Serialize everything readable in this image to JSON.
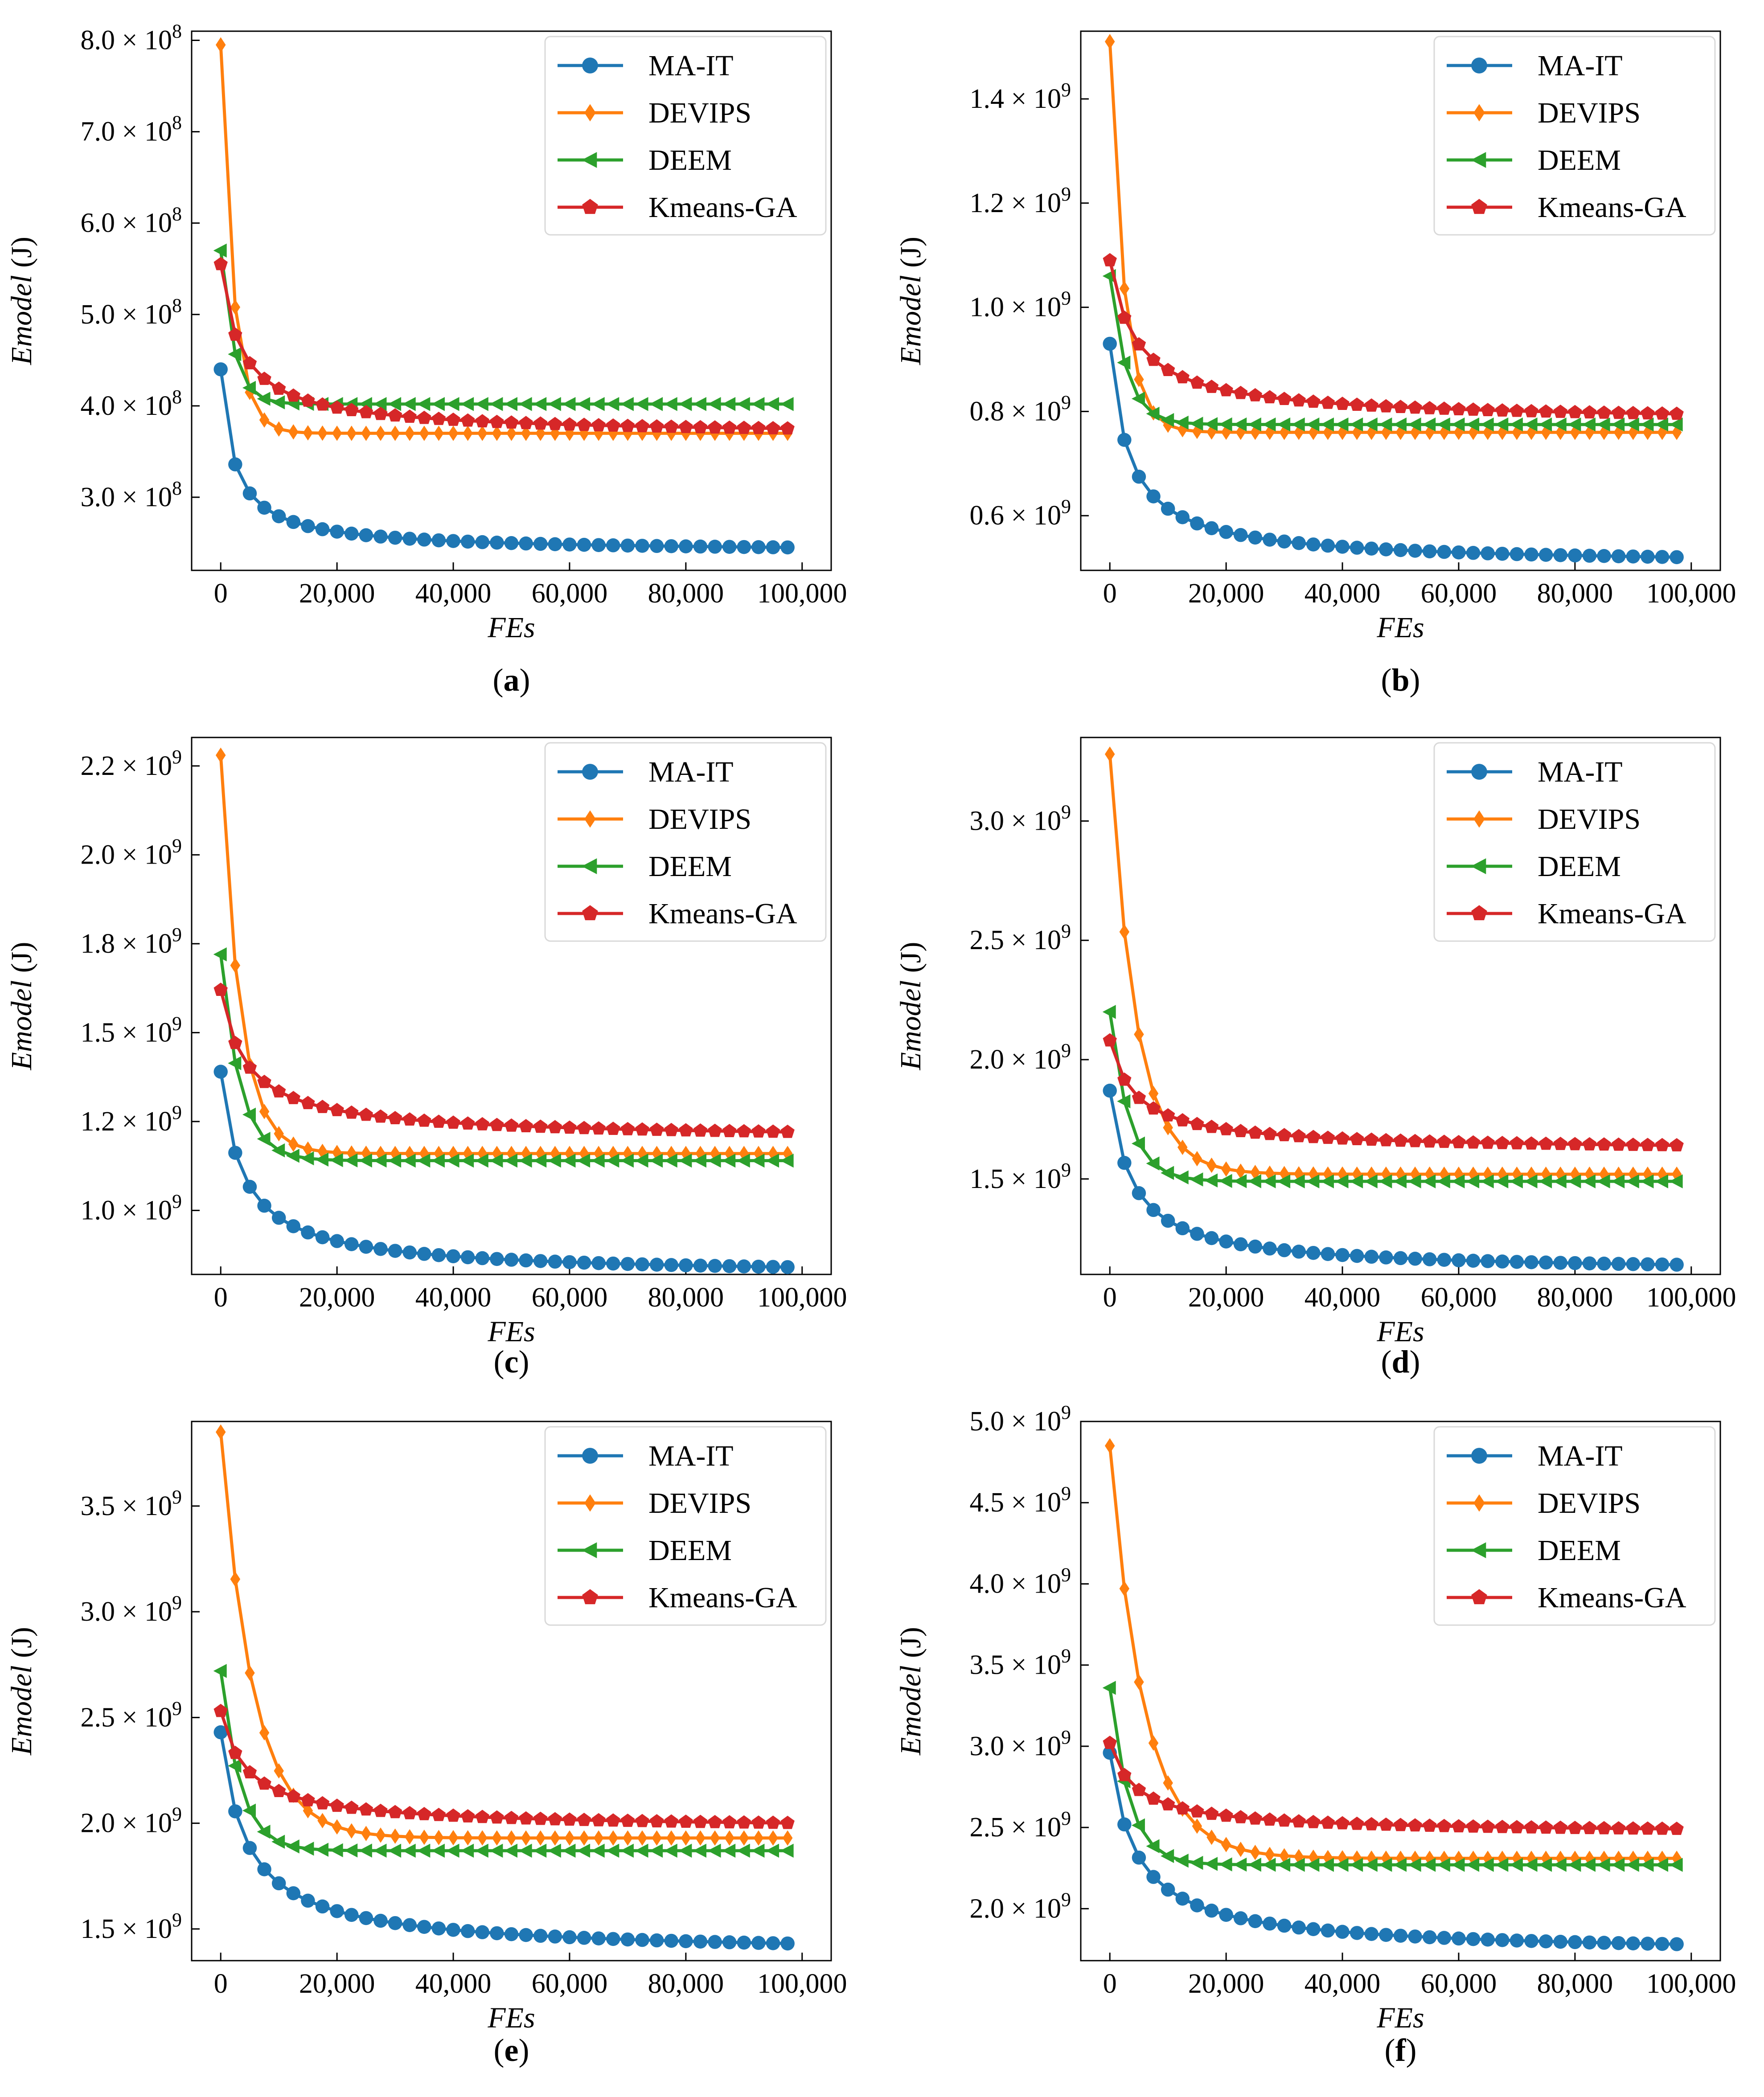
{
  "colors": {
    "MA-IT": "#1f77b4",
    "DEVIPS": "#ff7f0e",
    "DEEM": "#2ca02c",
    "Kmeans-GA": "#d62728"
  },
  "markers": {
    "MA-IT": "circle",
    "DEVIPS": "diamond",
    "DEEM": "triangle-left",
    "Kmeans-GA": "pentagon"
  },
  "chart_data": [
    {
      "panel": "(a)",
      "caption_letter": "a",
      "type": "line",
      "xlabel": "FEs",
      "ylabel": "Emodel (J)",
      "xlim": [
        -5000,
        105000
      ],
      "ylim": [
        220000000.0,
        810000000.0
      ],
      "xticks": [
        0,
        20000,
        40000,
        60000,
        80000,
        100000
      ],
      "xtick_labels": [
        "0",
        "20,000",
        "40,000",
        "60,000",
        "80,000",
        "100,000"
      ],
      "yticks": [
        300000000.0,
        400000000.0,
        500000000.0,
        600000000.0,
        700000000.0,
        800000000.0
      ],
      "ytick_labels": [
        {
          "mant": "3.0",
          "exp": "8"
        },
        {
          "mant": "4.0",
          "exp": "8"
        },
        {
          "mant": "5.0",
          "exp": "8"
        },
        {
          "mant": "6.0",
          "exp": "8"
        },
        {
          "mant": "7.0",
          "exp": "8"
        },
        {
          "mant": "8.0",
          "exp": "8"
        }
      ],
      "legend": [
        "MA-IT",
        "DEVIPS",
        "DEEM",
        "Kmeans-GA"
      ],
      "legend_position": "upper-right",
      "series": [
        {
          "name": "MA-IT",
          "start": 440000000.0,
          "end": 245000000.0,
          "rate": 5,
          "form": "power"
        },
        {
          "name": "DEVIPS",
          "start": 795000000.0,
          "end": 370000000.0,
          "rate": 0.00045,
          "form": "exp",
          "plateau": 370000000.0
        },
        {
          "name": "DEEM",
          "start": 570000000.0,
          "end": 402000000.0,
          "rate": 0.00045,
          "form": "exp",
          "plateau": 402000000.0
        },
        {
          "name": "Kmeans-GA",
          "start": 555000000.0,
          "end": 375000000.0,
          "rate": 3.2,
          "form": "power"
        }
      ]
    },
    {
      "panel": "(b)",
      "caption_letter": "b",
      "type": "line",
      "xlabel": "FEs",
      "ylabel": "Emodel (J)",
      "xlim": [
        -5000,
        105000
      ],
      "ylim": [
        495000000.0,
        1530000000.0
      ],
      "xticks": [
        0,
        20000,
        40000,
        60000,
        80000,
        100000
      ],
      "xtick_labels": [
        "0",
        "20,000",
        "40,000",
        "60,000",
        "80,000",
        "100,000"
      ],
      "yticks": [
        600000000.0,
        800000000.0,
        1000000000.0,
        1200000000.0,
        1400000000.0
      ],
      "ytick_labels": [
        {
          "mant": "0.6",
          "exp": "9"
        },
        {
          "mant": "0.8",
          "exp": "9"
        },
        {
          "mant": "1.0",
          "exp": "9"
        },
        {
          "mant": "1.2",
          "exp": "9"
        },
        {
          "mant": "1.4",
          "exp": "9"
        }
      ],
      "legend": [
        "MA-IT",
        "DEVIPS",
        "DEEM",
        "Kmeans-GA"
      ],
      "legend_position": "upper-right",
      "series": [
        {
          "name": "MA-IT",
          "start": 930000000.0,
          "end": 520000000.0,
          "rate": 3.5,
          "form": "power"
        },
        {
          "name": "DEVIPS",
          "start": 1510000000.0,
          "end": 760000000.0,
          "rate": 0.0004,
          "form": "exp",
          "plateau": 760000000.0
        },
        {
          "name": "DEEM",
          "start": 1060000000.0,
          "end": 775000000.0,
          "rate": 0.00035,
          "form": "exp",
          "plateau": 775000000.0
        },
        {
          "name": "Kmeans-GA",
          "start": 1090000000.0,
          "end": 795000000.0,
          "rate": 2.5,
          "form": "power"
        }
      ]
    },
    {
      "panel": "(c)",
      "caption_letter": "c",
      "type": "line",
      "xlabel": "FEs",
      "ylabel": "Emodel (J)",
      "xlim": [
        -5000,
        105000
      ],
      "ylim": [
        820000000.0,
        2330000000.0
      ],
      "xticks": [
        0,
        20000,
        40000,
        60000,
        80000,
        100000
      ],
      "xtick_labels": [
        "0",
        "20,000",
        "40,000",
        "60,000",
        "80,000",
        "100,000"
      ],
      "yticks": [
        1000000000.0,
        1250000000.0,
        1500000000.0,
        1750000000.0,
        2000000000.0,
        2250000000.0
      ],
      "ytick_labels": [
        {
          "mant": "1.0",
          "exp": "9"
        },
        {
          "mant": "1.2",
          "exp": "9"
        },
        {
          "mant": "1.5",
          "exp": "9"
        },
        {
          "mant": "1.8",
          "exp": "9"
        },
        {
          "mant": "2.0",
          "exp": "9"
        },
        {
          "mant": "2.2",
          "exp": "9"
        }
      ],
      "legend": [
        "MA-IT",
        "DEVIPS",
        "DEEM",
        "Kmeans-GA"
      ],
      "legend_position": "upper-right",
      "series": [
        {
          "name": "MA-IT",
          "start": 1390000000.0,
          "end": 840000000.0,
          "rate": 3,
          "form": "power"
        },
        {
          "name": "DEVIPS",
          "start": 2280000000.0,
          "end": 1160000000.0,
          "rate": 0.0003,
          "form": "exp",
          "plateau": 1160000000.0
        },
        {
          "name": "DEEM",
          "start": 1720000000.0,
          "end": 1140000000.0,
          "rate": 0.0003,
          "form": "exp",
          "plateau": 1140000000.0
        },
        {
          "name": "Kmeans-GA",
          "start": 1620000000.0,
          "end": 1220000000.0,
          "rate": 2.5,
          "form": "power"
        }
      ]
    },
    {
      "panel": "(d)",
      "caption_letter": "d",
      "type": "line",
      "xlabel": "FEs",
      "ylabel": "Emodel (J)",
      "xlim": [
        -5000,
        105000
      ],
      "ylim": [
        1100000000.0,
        3350000000.0
      ],
      "xticks": [
        0,
        20000,
        40000,
        60000,
        80000,
        100000
      ],
      "xtick_labels": [
        "0",
        "20,000",
        "40,000",
        "60,000",
        "80,000",
        "100,000"
      ],
      "yticks": [
        1500000000.0,
        2000000000.0,
        2500000000.0,
        3000000000.0
      ],
      "ytick_labels": [
        {
          "mant": "1.5",
          "exp": "9"
        },
        {
          "mant": "2.0",
          "exp": "9"
        },
        {
          "mant": "2.5",
          "exp": "9"
        },
        {
          "mant": "3.0",
          "exp": "9"
        }
      ],
      "legend": [
        "MA-IT",
        "DEVIPS",
        "DEEM",
        "Kmeans-GA"
      ],
      "legend_position": "upper-right",
      "series": [
        {
          "name": "MA-IT",
          "start": 1870000000.0,
          "end": 1140000000.0,
          "rate": 3,
          "form": "power"
        },
        {
          "name": "DEVIPS",
          "start": 3280000000.0,
          "end": 1520000000.0,
          "rate": 0.00022,
          "form": "exp",
          "plateau": 1520000000.0
        },
        {
          "name": "DEEM",
          "start": 2200000000.0,
          "end": 1490000000.0,
          "rate": 0.0003,
          "form": "exp",
          "plateau": 1490000000.0
        },
        {
          "name": "Kmeans-GA",
          "start": 2080000000.0,
          "end": 1640000000.0,
          "rate": 2.5,
          "form": "power"
        }
      ]
    },
    {
      "panel": "(e)",
      "caption_letter": "e",
      "type": "line",
      "xlabel": "FEs",
      "ylabel": "Emodel (J)",
      "xlim": [
        -5000,
        105000
      ],
      "ylim": [
        1350000000.0,
        3900000000.0
      ],
      "xticks": [
        0,
        20000,
        40000,
        60000,
        80000,
        100000
      ],
      "xtick_labels": [
        "0",
        "20,000",
        "40,000",
        "60,000",
        "80,000",
        "100,000"
      ],
      "yticks": [
        1500000000.0,
        2000000000.0,
        2500000000.0,
        3000000000.0,
        3500000000.0
      ],
      "ytick_labels": [
        {
          "mant": "1.5",
          "exp": "9"
        },
        {
          "mant": "2.0",
          "exp": "9"
        },
        {
          "mant": "2.5",
          "exp": "9"
        },
        {
          "mant": "3.0",
          "exp": "9"
        },
        {
          "mant": "3.5",
          "exp": "9"
        }
      ],
      "legend": [
        "MA-IT",
        "DEVIPS",
        "DEEM",
        "Kmeans-GA"
      ],
      "legend_position": "upper-right",
      "series": [
        {
          "name": "MA-IT",
          "start": 2430000000.0,
          "end": 1430000000.0,
          "rate": 2.5,
          "form": "power"
        },
        {
          "name": "DEVIPS",
          "start": 3850000000.0,
          "end": 1930000000.0,
          "rate": 0.00018,
          "form": "exp",
          "plateau": 1930000000.0
        },
        {
          "name": "DEEM",
          "start": 2720000000.0,
          "end": 1870000000.0,
          "rate": 0.0003,
          "form": "exp",
          "plateau": 1870000000.0
        },
        {
          "name": "Kmeans-GA",
          "start": 2530000000.0,
          "end": 2000000000.0,
          "rate": 2.5,
          "form": "power"
        }
      ]
    },
    {
      "panel": "(f)",
      "caption_letter": "f",
      "type": "line",
      "xlabel": "FEs",
      "ylabel": "Emodel (J)",
      "xlim": [
        -5000,
        105000
      ],
      "ylim": [
        1680000000.0,
        5000000000.0
      ],
      "xticks": [
        0,
        20000,
        40000,
        60000,
        80000,
        100000
      ],
      "xtick_labels": [
        "0",
        "20,000",
        "40,000",
        "60,000",
        "80,000",
        "100,000"
      ],
      "yticks": [
        2000000000.0,
        2500000000.0,
        3000000000.0,
        3500000000.0,
        4000000000.0,
        4500000000.0,
        5000000000.0
      ],
      "ytick_labels": [
        {
          "mant": "2.0",
          "exp": "9"
        },
        {
          "mant": "2.5",
          "exp": "9"
        },
        {
          "mant": "3.0",
          "exp": "9"
        },
        {
          "mant": "3.5",
          "exp": "9"
        },
        {
          "mant": "4.0",
          "exp": "9"
        },
        {
          "mant": "4.5",
          "exp": "9"
        },
        {
          "mant": "5.0",
          "exp": "9"
        }
      ],
      "legend": [
        "MA-IT",
        "DEVIPS",
        "DEEM",
        "Kmeans-GA"
      ],
      "legend_position": "upper-right",
      "series": [
        {
          "name": "MA-IT",
          "start": 2960000000.0,
          "end": 1780000000.0,
          "rate": 2.5,
          "form": "power"
        },
        {
          "name": "DEVIPS",
          "start": 4850000000.0,
          "end": 2310000000.0,
          "rate": 0.00017,
          "form": "exp",
          "plateau": 2310000000.0
        },
        {
          "name": "DEEM",
          "start": 3360000000.0,
          "end": 2270000000.0,
          "rate": 0.0003,
          "form": "exp",
          "plateau": 2270000000.0
        },
        {
          "name": "Kmeans-GA",
          "start": 3020000000.0,
          "end": 2490000000.0,
          "rate": 2.5,
          "form": "power"
        }
      ]
    }
  ]
}
